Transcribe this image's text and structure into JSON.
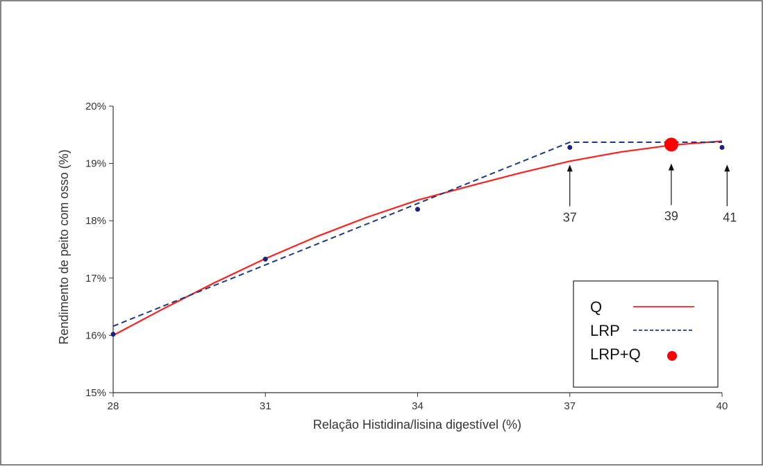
{
  "chart_data": {
    "type": "line",
    "xlabel": "Relação Histidina/lisina digestível (%)",
    "ylabel": "Rendimento de peito com osso (%)",
    "xlim": [
      28,
      40
    ],
    "ylim": [
      15,
      20
    ],
    "x_ticks": [
      "28",
      "31",
      "34",
      "37",
      "40"
    ],
    "y_ticks": [
      "15%",
      "16%",
      "17%",
      "18%",
      "19%",
      "20%"
    ],
    "observed": {
      "x": [
        28,
        31,
        34,
        37,
        40
      ],
      "y": [
        16.02,
        17.33,
        18.2,
        19.28,
        19.28
      ],
      "color": "#1a237e"
    },
    "series": [
      {
        "name": "Q",
        "style": "solid",
        "color": "#ff2020",
        "x": [
          28,
          29,
          30,
          31,
          32,
          33,
          34,
          35,
          36,
          37,
          38,
          39,
          40
        ],
        "y": [
          16.0,
          16.47,
          16.92,
          17.34,
          17.72,
          18.06,
          18.36,
          18.6,
          18.83,
          19.04,
          19.2,
          19.32,
          19.39
        ]
      },
      {
        "name": "LRP",
        "style": "dashed",
        "color": "#1f3a7a",
        "x": [
          28,
          37,
          40
        ],
        "y": [
          16.16,
          19.37,
          19.37
        ]
      },
      {
        "name": "LRP+Q",
        "style": "point",
        "color": "#ff0000",
        "x": [
          39
        ],
        "y": [
          19.33
        ]
      }
    ],
    "annotations": [
      {
        "label": "37",
        "x": 37,
        "y": 18.98
      },
      {
        "label": "39",
        "x": 39,
        "y": 19.0
      },
      {
        "label": "41",
        "x": 40.1,
        "y": 18.98
      }
    ],
    "legend": {
      "position": "bottom-right"
    },
    "grid": false
  }
}
